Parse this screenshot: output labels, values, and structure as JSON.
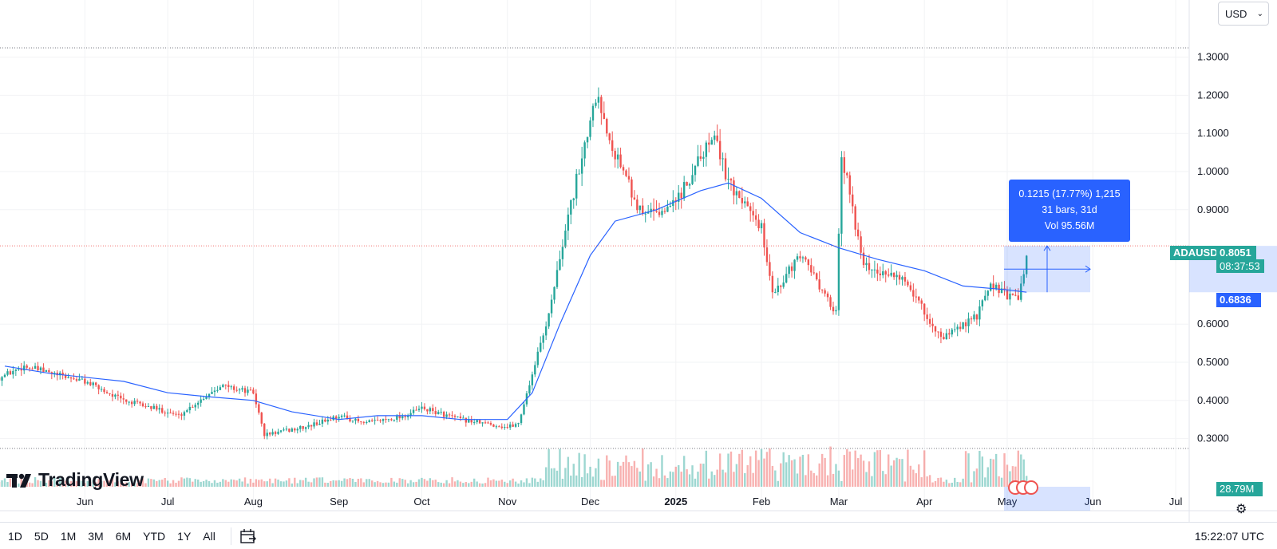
{
  "currency_select": {
    "value": "USD"
  },
  "symbol": "ADAUSD",
  "price_badge": {
    "price": "0.8051",
    "countdown": "08:37:53"
  },
  "ma_badge": "0.6836",
  "volume_badge": "28.79M",
  "measure_tooltip": {
    "line1": "0.1215 (17.77%) 1,215",
    "line2": "31 bars, 31d",
    "line3": "Vol 95.56M"
  },
  "logo_text": "TradingView",
  "ranges": [
    "1D",
    "5D",
    "1M",
    "3M",
    "6M",
    "YTD",
    "1Y",
    "All"
  ],
  "clock": "15:22:07 UTC",
  "colors": {
    "up": "#26a69a",
    "down": "#ef5350",
    "ma": "#2962ff",
    "accent": "#2962ff"
  },
  "chart_data": {
    "type": "candlestick",
    "symbol": "ADAUSD",
    "y_ticks": [
      "1.3000",
      "1.2000",
      "1.1000",
      "1.0000",
      "0.9000",
      "0.6000",
      "0.5000",
      "0.4000",
      "0.3000"
    ],
    "x_ticks": [
      "Jun",
      "Jul",
      "Aug",
      "Sep",
      "Oct",
      "Nov",
      "Dec",
      "2025",
      "Feb",
      "Mar",
      "Apr",
      "May",
      "Jun",
      "Jul"
    ],
    "ylim": [
      0.25,
      1.38
    ],
    "ma_series": [
      {
        "t": "2024-05-03",
        "v": 0.49
      },
      {
        "t": "2024-05-20",
        "v": 0.47
      },
      {
        "t": "2024-06-15",
        "v": 0.45
      },
      {
        "t": "2024-07-01",
        "v": 0.42
      },
      {
        "t": "2024-07-15",
        "v": 0.41
      },
      {
        "t": "2024-08-01",
        "v": 0.4
      },
      {
        "t": "2024-08-15",
        "v": 0.37
      },
      {
        "t": "2024-09-01",
        "v": 0.35
      },
      {
        "t": "2024-09-15",
        "v": 0.36
      },
      {
        "t": "2024-10-01",
        "v": 0.36
      },
      {
        "t": "2024-10-15",
        "v": 0.35
      },
      {
        "t": "2024-11-01",
        "v": 0.35
      },
      {
        "t": "2024-11-10",
        "v": 0.42
      },
      {
        "t": "2024-11-20",
        "v": 0.6
      },
      {
        "t": "2024-12-01",
        "v": 0.78
      },
      {
        "t": "2024-12-10",
        "v": 0.87
      },
      {
        "t": "2024-12-25",
        "v": 0.9
      },
      {
        "t": "2025-01-10",
        "v": 0.95
      },
      {
        "t": "2025-01-20",
        "v": 0.97
      },
      {
        "t": "2025-02-01",
        "v": 0.93
      },
      {
        "t": "2025-02-15",
        "v": 0.84
      },
      {
        "t": "2025-03-01",
        "v": 0.8
      },
      {
        "t": "2025-03-15",
        "v": 0.77
      },
      {
        "t": "2025-04-01",
        "v": 0.74
      },
      {
        "t": "2025-04-15",
        "v": 0.7
      },
      {
        "t": "2025-05-01",
        "v": 0.69
      },
      {
        "t": "2025-05-08",
        "v": 0.6836
      }
    ],
    "price_path": [
      {
        "t": "2024-05-01",
        "v": 0.46
      },
      {
        "t": "2024-05-10",
        "v": 0.49
      },
      {
        "t": "2024-05-20",
        "v": 0.47
      },
      {
        "t": "2024-06-01",
        "v": 0.45
      },
      {
        "t": "2024-06-15",
        "v": 0.4
      },
      {
        "t": "2024-07-01",
        "v": 0.37
      },
      {
        "t": "2024-07-05",
        "v": 0.36
      },
      {
        "t": "2024-07-20",
        "v": 0.44
      },
      {
        "t": "2024-08-01",
        "v": 0.42
      },
      {
        "t": "2024-08-05",
        "v": 0.31
      },
      {
        "t": "2024-08-20",
        "v": 0.33
      },
      {
        "t": "2024-09-01",
        "v": 0.36
      },
      {
        "t": "2024-09-10",
        "v": 0.34
      },
      {
        "t": "2024-09-25",
        "v": 0.36
      },
      {
        "t": "2024-10-01",
        "v": 0.38
      },
      {
        "t": "2024-10-15",
        "v": 0.35
      },
      {
        "t": "2024-11-01",
        "v": 0.33
      },
      {
        "t": "2024-11-05",
        "v": 0.34
      },
      {
        "t": "2024-11-15",
        "v": 0.6
      },
      {
        "t": "2024-11-22",
        "v": 0.85
      },
      {
        "t": "2024-12-03",
        "v": 1.2
      },
      {
        "t": "2024-12-10",
        "v": 1.05
      },
      {
        "t": "2024-12-20",
        "v": 0.88
      },
      {
        "t": "2025-01-01",
        "v": 0.92
      },
      {
        "t": "2025-01-15",
        "v": 1.1
      },
      {
        "t": "2025-01-20",
        "v": 0.97
      },
      {
        "t": "2025-02-01",
        "v": 0.85
      },
      {
        "t": "2025-02-05",
        "v": 0.68
      },
      {
        "t": "2025-02-15",
        "v": 0.78
      },
      {
        "t": "2025-02-28",
        "v": 0.63
      },
      {
        "t": "2025-03-02",
        "v": 1.05
      },
      {
        "t": "2025-03-10",
        "v": 0.75
      },
      {
        "t": "2025-03-25",
        "v": 0.72
      },
      {
        "t": "2025-04-07",
        "v": 0.56
      },
      {
        "t": "2025-04-20",
        "v": 0.62
      },
      {
        "t": "2025-04-25",
        "v": 0.7
      },
      {
        "t": "2025-05-05",
        "v": 0.66
      },
      {
        "t": "2025-05-09",
        "v": 0.8051
      }
    ],
    "last_price": 0.8051,
    "ma_value": 0.6836
  }
}
